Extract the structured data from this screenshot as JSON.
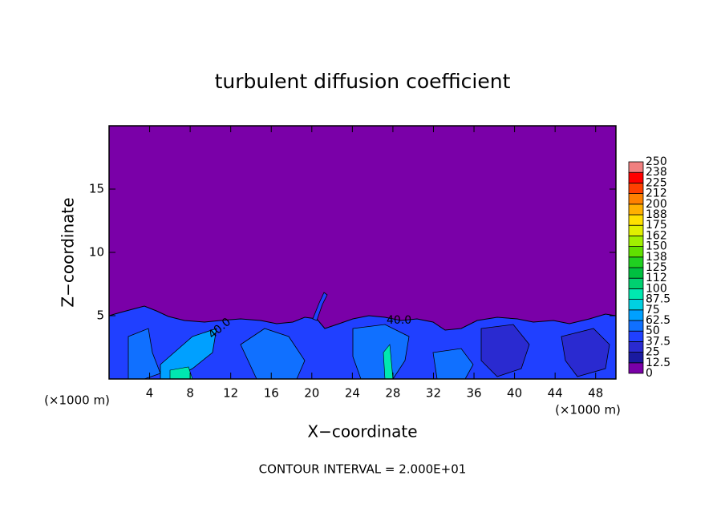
{
  "chart_data": {
    "type": "contour",
    "title": "turbulent diffusion coefficient",
    "xlabel": "X−coordinate",
    "ylabel": "Z−coordinate",
    "unit_label": "(×1000 m)",
    "footer": "CONTOUR INTERVAL = 2.000E+01",
    "contour_labels": [
      "40.0",
      "40.0"
    ],
    "xlim": [
      0,
      50
    ],
    "xticks": [
      4,
      8,
      12,
      16,
      20,
      24,
      28,
      32,
      36,
      40,
      44,
      48
    ],
    "ylim": [
      0,
      20
    ],
    "yticks": [
      5,
      10,
      15
    ],
    "background_color": "#7a00a8",
    "colorbar": {
      "lim": [
        0,
        250
      ],
      "ticks": [
        0,
        12.5,
        25,
        37.5,
        50,
        62.5,
        75,
        87.5,
        100,
        {
          "value": 112.5,
          "label": "112"
        },
        125,
        {
          "value": 137.5,
          "label": "138"
        },
        150,
        {
          "value": 162.5,
          "label": "162"
        },
        175,
        {
          "value": 187.5,
          "label": "188"
        },
        200,
        {
          "value": 212.5,
          "label": "212"
        },
        225,
        {
          "value": 237.5,
          "label": "238"
        },
        250
      ],
      "colors": [
        "#7a00a8",
        "#1a1aa0",
        "#2a2ad0",
        "#2040ff",
        "#1070ff",
        "#00a0ff",
        "#00d0e0",
        "#00e8b0",
        "#00d070",
        "#00c040",
        "#20d020",
        "#60e000",
        "#a0f000",
        "#e0f000",
        "#ffe000",
        "#ffb000",
        "#ff8000",
        "#ff4000",
        "#ff0000",
        "#f08080"
      ]
    }
  }
}
